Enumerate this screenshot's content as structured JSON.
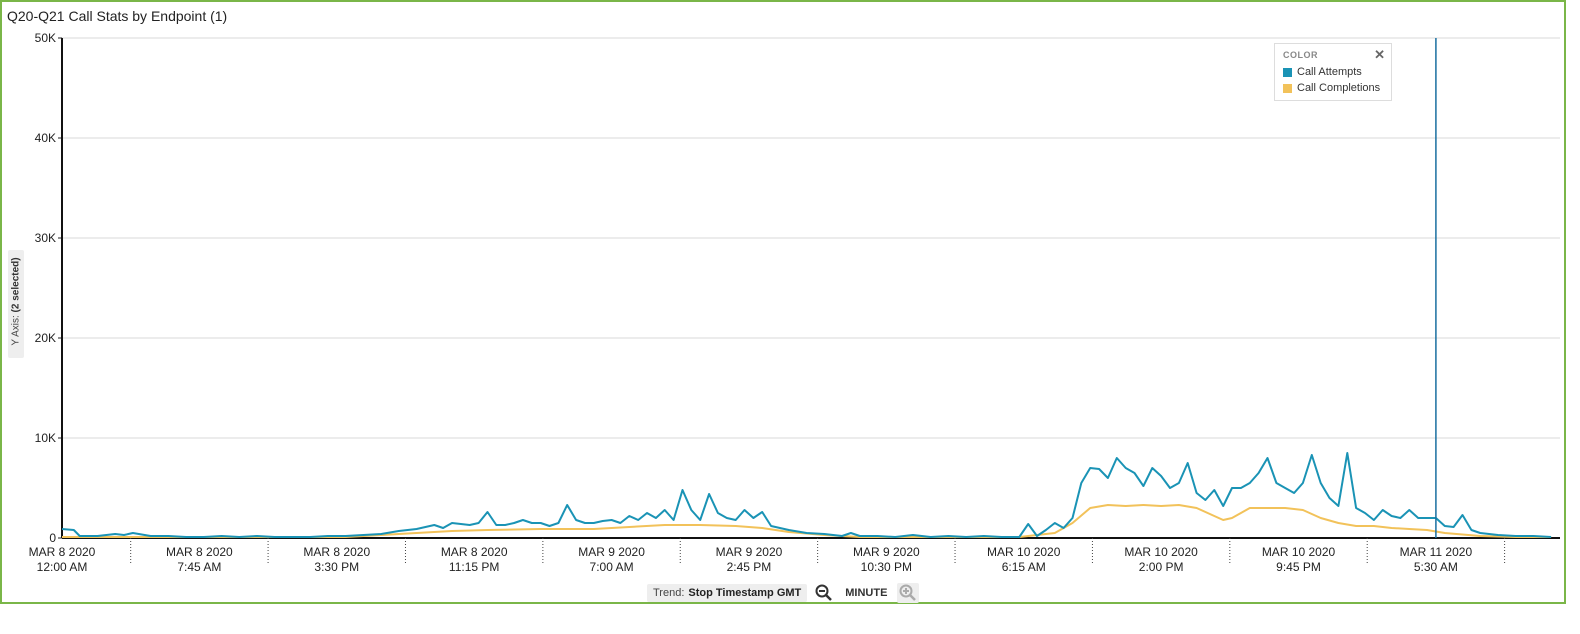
{
  "window": {
    "title": "Q20-Q21 Call Stats by Endpoint (1)"
  },
  "y_axis_tab": {
    "label": "Y Axis:",
    "selected": "(2 selected)"
  },
  "legend": {
    "heading": "COLOR",
    "close_icon": "close-icon",
    "items": [
      {
        "label": "Call Attempts",
        "color": "#1a93b5"
      },
      {
        "label": "Call Completions",
        "color": "#f2c25a"
      }
    ]
  },
  "trend_bar": {
    "label": "Trend:",
    "field": "Stop Timestamp GMT",
    "granularity": "MINUTE",
    "zoom_out_icon": "zoom-out-icon",
    "zoom_in_icon": "zoom-in-icon"
  },
  "chart_data": {
    "type": "line",
    "title": "Q20-Q21 Call Stats by Endpoint (1)",
    "xlabel": "",
    "ylabel": "",
    "ylim": [
      0,
      50000
    ],
    "ytick_labels": [
      "0",
      "10K",
      "20K",
      "30K",
      "40K",
      "50K"
    ],
    "yticks": [
      0,
      10000,
      20000,
      30000,
      40000,
      50000
    ],
    "xlim": [
      "2020-03-08 00:00",
      "2020-03-11 12:30"
    ],
    "xtick_labels": [
      [
        "MAR 8 2020",
        "12:00 AM"
      ],
      [
        "MAR 8 2020",
        "7:45 AM"
      ],
      [
        "MAR 8 2020",
        "3:30 PM"
      ],
      [
        "MAR 8 2020",
        "11:15 PM"
      ],
      [
        "MAR 9 2020",
        "7:00 AM"
      ],
      [
        "MAR 9 2020",
        "2:45 PM"
      ],
      [
        "MAR 9 2020",
        "10:30 PM"
      ],
      [
        "MAR 10 2020",
        "6:15 AM"
      ],
      [
        "MAR 10 2020",
        "2:00 PM"
      ],
      [
        "MAR 10 2020",
        "9:45 PM"
      ],
      [
        "MAR 11 2020",
        "5:30 AM"
      ]
    ],
    "reference_line_x": "2020-03-11 05:30",
    "grid": true,
    "legend_position": "top-right",
    "series": [
      {
        "name": "Call Attempts",
        "color": "#1a93b5",
        "points": [
          [
            "2020-03-08 00:00",
            900
          ],
          [
            "2020-03-08 00:40",
            800
          ],
          [
            "2020-03-08 01:00",
            200
          ],
          [
            "2020-03-08 02:00",
            200
          ],
          [
            "2020-03-08 03:00",
            400
          ],
          [
            "2020-03-08 03:30",
            300
          ],
          [
            "2020-03-08 04:00",
            500
          ],
          [
            "2020-03-08 05:00",
            200
          ],
          [
            "2020-03-08 06:00",
            200
          ],
          [
            "2020-03-08 07:00",
            100
          ],
          [
            "2020-03-08 08:00",
            100
          ],
          [
            "2020-03-08 09:00",
            200
          ],
          [
            "2020-03-08 10:00",
            100
          ],
          [
            "2020-03-08 11:00",
            200
          ],
          [
            "2020-03-08 12:00",
            100
          ],
          [
            "2020-03-08 13:00",
            100
          ],
          [
            "2020-03-08 14:00",
            100
          ],
          [
            "2020-03-08 15:00",
            200
          ],
          [
            "2020-03-08 16:00",
            200
          ],
          [
            "2020-03-08 17:00",
            300
          ],
          [
            "2020-03-08 18:00",
            400
          ],
          [
            "2020-03-08 19:00",
            700
          ],
          [
            "2020-03-08 20:00",
            900
          ],
          [
            "2020-03-08 21:00",
            1300
          ],
          [
            "2020-03-08 21:30",
            1000
          ],
          [
            "2020-03-08 22:00",
            1500
          ],
          [
            "2020-03-08 23:00",
            1300
          ],
          [
            "2020-03-08 23:30",
            1500
          ],
          [
            "2020-03-09 00:00",
            2600
          ],
          [
            "2020-03-09 00:30",
            1300
          ],
          [
            "2020-03-09 01:00",
            1300
          ],
          [
            "2020-03-09 01:30",
            1500
          ],
          [
            "2020-03-09 02:00",
            1800
          ],
          [
            "2020-03-09 02:30",
            1500
          ],
          [
            "2020-03-09 03:00",
            1500
          ],
          [
            "2020-03-09 03:30",
            1200
          ],
          [
            "2020-03-09 04:00",
            1500
          ],
          [
            "2020-03-09 04:30",
            3300
          ],
          [
            "2020-03-09 05:00",
            1800
          ],
          [
            "2020-03-09 05:30",
            1500
          ],
          [
            "2020-03-09 06:00",
            1500
          ],
          [
            "2020-03-09 06:30",
            1700
          ],
          [
            "2020-03-09 07:00",
            1800
          ],
          [
            "2020-03-09 07:30",
            1500
          ],
          [
            "2020-03-09 08:00",
            2200
          ],
          [
            "2020-03-09 08:30",
            1800
          ],
          [
            "2020-03-09 09:00",
            2500
          ],
          [
            "2020-03-09 09:30",
            2000
          ],
          [
            "2020-03-09 10:00",
            2800
          ],
          [
            "2020-03-09 10:30",
            1800
          ],
          [
            "2020-03-09 11:00",
            4800
          ],
          [
            "2020-03-09 11:30",
            2800
          ],
          [
            "2020-03-09 12:00",
            1800
          ],
          [
            "2020-03-09 12:30",
            4400
          ],
          [
            "2020-03-09 13:00",
            2500
          ],
          [
            "2020-03-09 13:30",
            2000
          ],
          [
            "2020-03-09 14:00",
            1800
          ],
          [
            "2020-03-09 14:30",
            2800
          ],
          [
            "2020-03-09 15:00",
            2000
          ],
          [
            "2020-03-09 15:30",
            2600
          ],
          [
            "2020-03-09 16:00",
            1200
          ],
          [
            "2020-03-09 17:00",
            800
          ],
          [
            "2020-03-09 18:00",
            500
          ],
          [
            "2020-03-09 19:00",
            400
          ],
          [
            "2020-03-09 20:00",
            200
          ],
          [
            "2020-03-09 20:30",
            500
          ],
          [
            "2020-03-09 21:00",
            200
          ],
          [
            "2020-03-09 22:00",
            200
          ],
          [
            "2020-03-09 23:00",
            100
          ],
          [
            "2020-03-10 00:00",
            300
          ],
          [
            "2020-03-10 01:00",
            100
          ],
          [
            "2020-03-10 02:00",
            200
          ],
          [
            "2020-03-10 03:00",
            100
          ],
          [
            "2020-03-10 04:00",
            200
          ],
          [
            "2020-03-10 05:00",
            100
          ],
          [
            "2020-03-10 06:00",
            100
          ],
          [
            "2020-03-10 06:30",
            1400
          ],
          [
            "2020-03-10 07:00",
            200
          ],
          [
            "2020-03-10 07:30",
            800
          ],
          [
            "2020-03-10 08:00",
            1500
          ],
          [
            "2020-03-10 08:30",
            1000
          ],
          [
            "2020-03-10 09:00",
            2000
          ],
          [
            "2020-03-10 09:30",
            5500
          ],
          [
            "2020-03-10 10:00",
            7000
          ],
          [
            "2020-03-10 10:30",
            6900
          ],
          [
            "2020-03-10 11:00",
            6000
          ],
          [
            "2020-03-10 11:30",
            8000
          ],
          [
            "2020-03-10 12:00",
            7000
          ],
          [
            "2020-03-10 12:30",
            6500
          ],
          [
            "2020-03-10 13:00",
            5200
          ],
          [
            "2020-03-10 13:30",
            7000
          ],
          [
            "2020-03-10 14:00",
            6200
          ],
          [
            "2020-03-10 14:30",
            5000
          ],
          [
            "2020-03-10 15:00",
            5500
          ],
          [
            "2020-03-10 15:30",
            7500
          ],
          [
            "2020-03-10 16:00",
            4500
          ],
          [
            "2020-03-10 16:30",
            3800
          ],
          [
            "2020-03-10 17:00",
            4800
          ],
          [
            "2020-03-10 17:30",
            3200
          ],
          [
            "2020-03-10 18:00",
            5000
          ],
          [
            "2020-03-10 18:30",
            5000
          ],
          [
            "2020-03-10 19:00",
            5500
          ],
          [
            "2020-03-10 19:30",
            6500
          ],
          [
            "2020-03-10 20:00",
            8000
          ],
          [
            "2020-03-10 20:30",
            5500
          ],
          [
            "2020-03-10 21:00",
            5000
          ],
          [
            "2020-03-10 21:30",
            4500
          ],
          [
            "2020-03-10 22:00",
            5500
          ],
          [
            "2020-03-10 22:30",
            8300
          ],
          [
            "2020-03-10 23:00",
            5500
          ],
          [
            "2020-03-10 23:30",
            4000
          ],
          [
            "2020-03-11 00:00",
            3200
          ],
          [
            "2020-03-11 00:30",
            8500
          ],
          [
            "2020-03-11 01:00",
            3000
          ],
          [
            "2020-03-11 01:30",
            2500
          ],
          [
            "2020-03-11 02:00",
            1800
          ],
          [
            "2020-03-11 02:30",
            2800
          ],
          [
            "2020-03-11 03:00",
            2200
          ],
          [
            "2020-03-11 03:30",
            2000
          ],
          [
            "2020-03-11 04:00",
            2800
          ],
          [
            "2020-03-11 04:30",
            2000
          ],
          [
            "2020-03-11 05:00",
            2000
          ],
          [
            "2020-03-11 05:30",
            2000
          ],
          [
            "2020-03-11 06:00",
            1200
          ],
          [
            "2020-03-11 06:30",
            1100
          ],
          [
            "2020-03-11 07:00",
            2300
          ],
          [
            "2020-03-11 07:30",
            800
          ],
          [
            "2020-03-11 08:00",
            500
          ],
          [
            "2020-03-11 09:00",
            300
          ],
          [
            "2020-03-11 10:00",
            200
          ],
          [
            "2020-03-11 11:00",
            200
          ],
          [
            "2020-03-11 12:00",
            100
          ]
        ]
      },
      {
        "name": "Call Completions",
        "color": "#f2c25a",
        "points": [
          [
            "2020-03-08 00:00",
            100
          ],
          [
            "2020-03-08 04:00",
            100
          ],
          [
            "2020-03-08 08:00",
            100
          ],
          [
            "2020-03-08 12:00",
            100
          ],
          [
            "2020-03-08 16:00",
            100
          ],
          [
            "2020-03-08 18:00",
            300
          ],
          [
            "2020-03-08 20:00",
            500
          ],
          [
            "2020-03-08 22:00",
            700
          ],
          [
            "2020-03-09 00:00",
            800
          ],
          [
            "2020-03-09 03:00",
            900
          ],
          [
            "2020-03-09 06:00",
            900
          ],
          [
            "2020-03-09 08:00",
            1100
          ],
          [
            "2020-03-09 10:00",
            1300
          ],
          [
            "2020-03-09 12:00",
            1300
          ],
          [
            "2020-03-09 14:00",
            1200
          ],
          [
            "2020-03-09 15:30",
            1000
          ],
          [
            "2020-03-09 17:00",
            600
          ],
          [
            "2020-03-09 19:00",
            300
          ],
          [
            "2020-03-09 21:00",
            100
          ],
          [
            "2020-03-10 00:00",
            100
          ],
          [
            "2020-03-10 04:00",
            100
          ],
          [
            "2020-03-10 06:00",
            100
          ],
          [
            "2020-03-10 08:00",
            500
          ],
          [
            "2020-03-10 09:00",
            1500
          ],
          [
            "2020-03-10 10:00",
            3000
          ],
          [
            "2020-03-10 11:00",
            3300
          ],
          [
            "2020-03-10 12:00",
            3200
          ],
          [
            "2020-03-10 13:00",
            3300
          ],
          [
            "2020-03-10 14:00",
            3200
          ],
          [
            "2020-03-10 15:00",
            3300
          ],
          [
            "2020-03-10 16:00",
            3000
          ],
          [
            "2020-03-10 17:00",
            2200
          ],
          [
            "2020-03-10 17:30",
            1800
          ],
          [
            "2020-03-10 18:00",
            2000
          ],
          [
            "2020-03-10 19:00",
            3000
          ],
          [
            "2020-03-10 20:00",
            3000
          ],
          [
            "2020-03-10 21:00",
            3000
          ],
          [
            "2020-03-10 22:00",
            2800
          ],
          [
            "2020-03-10 23:00",
            2000
          ],
          [
            "2020-03-11 00:00",
            1500
          ],
          [
            "2020-03-11 01:00",
            1200
          ],
          [
            "2020-03-11 02:00",
            1200
          ],
          [
            "2020-03-11 03:00",
            1000
          ],
          [
            "2020-03-11 04:00",
            900
          ],
          [
            "2020-03-11 05:00",
            800
          ],
          [
            "2020-03-11 06:00",
            500
          ],
          [
            "2020-03-11 08:00",
            200
          ],
          [
            "2020-03-11 10:00",
            100
          ],
          [
            "2020-03-11 12:00",
            100
          ]
        ]
      }
    ]
  }
}
